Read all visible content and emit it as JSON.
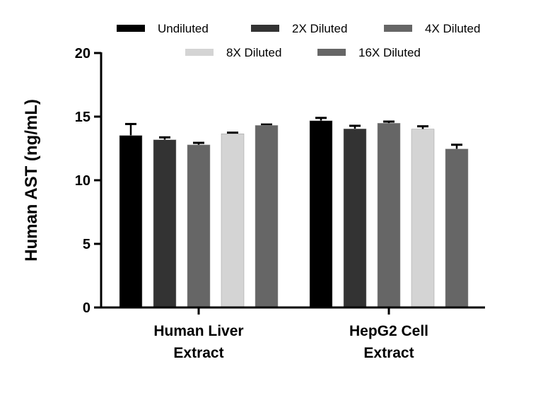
{
  "chart_data": {
    "type": "bar",
    "title": "",
    "ylabel": "Human AST (ng/mL)",
    "ylim": [
      0,
      20
    ],
    "yticks": [
      0,
      5,
      10,
      15,
      20
    ],
    "categories": [
      "Human Liver\nExtract",
      "HepG2 Cell\nExtract"
    ],
    "category_lines": [
      [
        "Human Liver",
        "Extract"
      ],
      [
        "HepG2 Cell",
        "Extract"
      ]
    ],
    "legend_position": "top",
    "grid": false,
    "series": [
      {
        "name": "Undiluted",
        "color": "#000000",
        "values": [
          13.52,
          14.68
        ],
        "errors": [
          0.9,
          0.22
        ]
      },
      {
        "name": "2X Diluted",
        "color": "#333333",
        "values": [
          13.18,
          14.04
        ],
        "errors": [
          0.19,
          0.24
        ]
      },
      {
        "name": "4X Diluted",
        "color": "#666666",
        "values": [
          12.78,
          14.48
        ],
        "errors": [
          0.16,
          0.13
        ]
      },
      {
        "name": "8X Diluted",
        "color": "#d4d4d4",
        "values": [
          13.65,
          14.02
        ],
        "errors": [
          0.09,
          0.22
        ]
      },
      {
        "name": "16X Diluted",
        "color": "#666666",
        "values": [
          14.31,
          12.46
        ],
        "errors": [
          0.07,
          0.33
        ]
      }
    ]
  }
}
